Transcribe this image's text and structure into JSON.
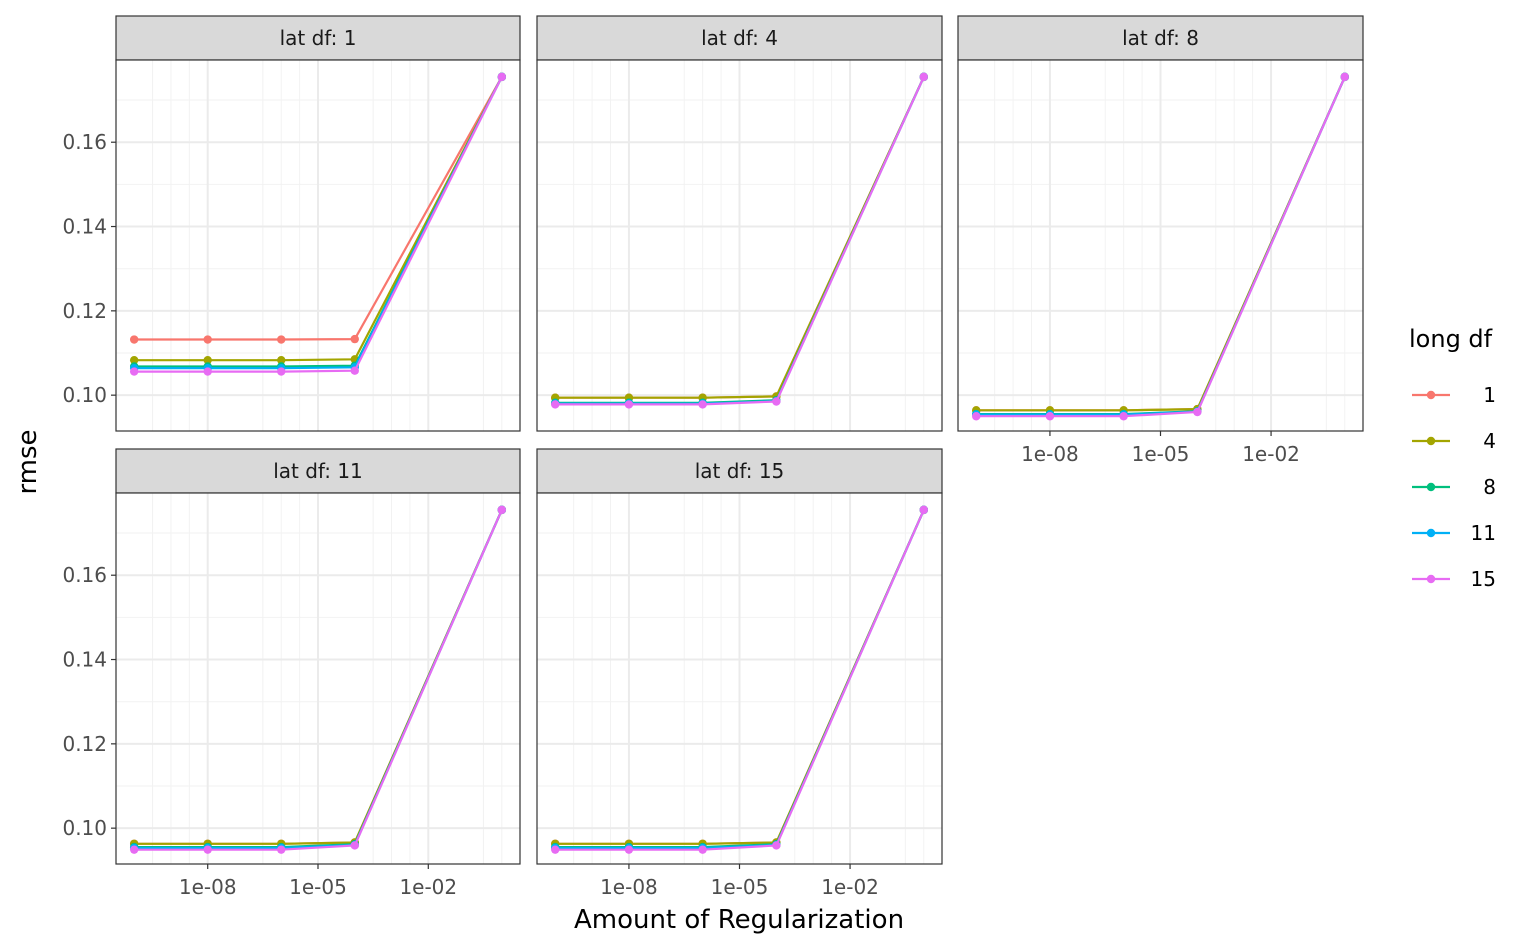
{
  "chart_data": {
    "type": "line",
    "facet_variable": "lat df",
    "xlabel": "Amount of Regularization",
    "ylabel": "rmse",
    "x_scale": "log10",
    "x_ticks": [
      "1e-08",
      "1e-05",
      "1e-02"
    ],
    "y_ticks": [
      "0.10",
      "0.12",
      "0.14",
      "0.16"
    ],
    "ylim": [
      0.0915,
      0.1795
    ],
    "grid": true,
    "legend": {
      "title": "long df",
      "placement": "right",
      "entries": [
        "1",
        "4",
        "8",
        "11",
        "15"
      ]
    },
    "colors": {
      "1": "#F8766D",
      "4": "#A3A500",
      "8": "#00BF7D",
      "11": "#00B0F6",
      "15": "#E76BF3"
    },
    "x": [
      1e-10,
      1e-08,
      1e-06,
      0.0001,
      1
    ],
    "panels": [
      {
        "title": "lat df: 1",
        "series": [
          {
            "name": "1",
            "values": [
              0.1132,
              0.1132,
              0.1132,
              0.1133,
              0.1755
            ]
          },
          {
            "name": "4",
            "values": [
              0.1083,
              0.1083,
              0.1083,
              0.1085,
              0.1755
            ]
          },
          {
            "name": "8",
            "values": [
              0.1068,
              0.1068,
              0.1068,
              0.107,
              0.1755
            ]
          },
          {
            "name": "11",
            "values": [
              0.1064,
              0.1064,
              0.1064,
              0.1066,
              0.1755
            ]
          },
          {
            "name": "15",
            "values": [
              0.1056,
              0.1056,
              0.1056,
              0.1058,
              0.1755
            ]
          }
        ]
      },
      {
        "title": "lat df: 4",
        "series": [
          {
            "name": "1",
            "values": [
              0.0994,
              0.0994,
              0.0994,
              0.0997,
              0.1755
            ]
          },
          {
            "name": "4",
            "values": [
              0.0994,
              0.0994,
              0.0994,
              0.0997,
              0.1755
            ]
          },
          {
            "name": "8",
            "values": [
              0.0982,
              0.0982,
              0.0982,
              0.0988,
              0.1755
            ]
          },
          {
            "name": "11",
            "values": [
              0.098,
              0.098,
              0.098,
              0.0986,
              0.1755
            ]
          },
          {
            "name": "15",
            "values": [
              0.0978,
              0.0978,
              0.0978,
              0.0985,
              0.1755
            ]
          }
        ]
      },
      {
        "title": "lat df: 8",
        "series": [
          {
            "name": "1",
            "values": [
              0.0964,
              0.0964,
              0.0964,
              0.0967,
              0.1755
            ]
          },
          {
            "name": "4",
            "values": [
              0.0964,
              0.0964,
              0.0964,
              0.0967,
              0.1755
            ]
          },
          {
            "name": "8",
            "values": [
              0.0955,
              0.0955,
              0.0955,
              0.0962,
              0.1755
            ]
          },
          {
            "name": "11",
            "values": [
              0.0954,
              0.0954,
              0.0954,
              0.0961,
              0.1755
            ]
          },
          {
            "name": "15",
            "values": [
              0.095,
              0.095,
              0.095,
              0.096,
              0.1755
            ]
          }
        ]
      },
      {
        "title": "lat df: 11",
        "series": [
          {
            "name": "1",
            "values": [
              0.0963,
              0.0963,
              0.0963,
              0.0966,
              0.1755
            ]
          },
          {
            "name": "4",
            "values": [
              0.0963,
              0.0963,
              0.0963,
              0.0966,
              0.1755
            ]
          },
          {
            "name": "8",
            "values": [
              0.0955,
              0.0955,
              0.0955,
              0.0962,
              0.1755
            ]
          },
          {
            "name": "11",
            "values": [
              0.0953,
              0.0953,
              0.0953,
              0.096,
              0.1755
            ]
          },
          {
            "name": "15",
            "values": [
              0.0949,
              0.0949,
              0.0949,
              0.0959,
              0.1755
            ]
          }
        ]
      },
      {
        "title": "lat df: 15",
        "series": [
          {
            "name": "1",
            "values": [
              0.0963,
              0.0963,
              0.0963,
              0.0966,
              0.1755
            ]
          },
          {
            "name": "4",
            "values": [
              0.0963,
              0.0963,
              0.0963,
              0.0966,
              0.1755
            ]
          },
          {
            "name": "8",
            "values": [
              0.0955,
              0.0955,
              0.0955,
              0.0962,
              0.1755
            ]
          },
          {
            "name": "11",
            "values": [
              0.0953,
              0.0953,
              0.0953,
              0.096,
              0.1755
            ]
          },
          {
            "name": "15",
            "values": [
              0.0949,
              0.0949,
              0.0949,
              0.0959,
              0.1755
            ]
          }
        ]
      }
    ]
  }
}
